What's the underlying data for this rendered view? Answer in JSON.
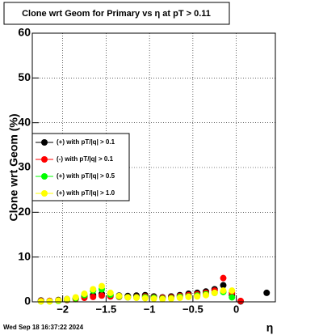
{
  "chart_data": {
    "type": "scatter",
    "title": "Clone wrt Geom for Primary vs   η at pT > 0.11",
    "y_label": "Clone wrt Geom (%)",
    "x_label": "η",
    "timestamp": "Wed Sep 18 16:37:22 2024",
    "xlim": [
      -2.35,
      0.45
    ],
    "ylim": [
      0,
      60
    ],
    "xticks": [
      {
        "value": -2,
        "label": "−2"
      },
      {
        "value": -1.5,
        "label": "−1.5"
      },
      {
        "value": -1,
        "label": "−1"
      },
      {
        "value": -0.5,
        "label": "−0.5"
      },
      0
    ],
    "yticks": [
      0,
      10,
      20,
      30,
      40,
      50,
      60
    ],
    "grid": true,
    "x": [
      -2.25,
      -2.15,
      -2.05,
      -1.95,
      -1.85,
      -1.75,
      -1.65,
      -1.55,
      -1.45,
      -1.35,
      -1.25,
      -1.15,
      -1.05,
      -0.95,
      -0.85,
      -0.75,
      -0.65,
      -0.55,
      -0.45,
      -0.35,
      -0.25,
      -0.15,
      -0.05,
      0.05,
      0.15,
      0.25,
      0.35
    ],
    "series": [
      {
        "name": "(+) with pT/|q| > 0.1",
        "color": "#000000",
        "values": [
          0.3,
          0.2,
          0.4,
          0.6,
          0.8,
          1.2,
          1.5,
          1.8,
          1.5,
          1.4,
          1.3,
          1.4,
          1.5,
          1.2,
          1,
          1.2,
          1.5,
          1.8,
          2,
          2.3,
          2.8,
          3.7,
          1.5,
          0.1,
          null,
          null,
          2
        ]
      },
      {
        "name": "(-) with pT/|q| > 0.1",
        "color": "#ff0000",
        "values": [
          0.2,
          0.2,
          0.3,
          0.4,
          0.6,
          0.9,
          1.1,
          1.4,
          1.2,
          1.1,
          1,
          1.1,
          1.2,
          1,
          0.9,
          1,
          1.3,
          1.5,
          1.7,
          2,
          2.5,
          5.3,
          2,
          0.2,
          null,
          null,
          null
        ]
      },
      {
        "name": "(+) with pT/|q| > 0.5",
        "color": "#00ff00",
        "values": [
          0.1,
          0.1,
          0.2,
          0.5,
          0.8,
          1.5,
          2.5,
          2.8,
          1.6,
          1.2,
          1,
          1,
          1,
          0.9,
          0.7,
          0.8,
          1.1,
          1.2,
          1.4,
          1.7,
          2,
          2.2,
          1,
          null,
          null,
          null,
          null
        ]
      },
      {
        "name": "(+) with pT/|q| > 1.0",
        "color": "#ffff00",
        "values": [
          0.1,
          0.1,
          0.3,
          0.6,
          1,
          1.8,
          2.8,
          3.5,
          2,
          1.3,
          1,
          0.9,
          0.8,
          0.7,
          0.6,
          0.7,
          0.9,
          1.1,
          1.2,
          1.5,
          2,
          2.5,
          2.5,
          null,
          null,
          null,
          null
        ]
      }
    ]
  }
}
